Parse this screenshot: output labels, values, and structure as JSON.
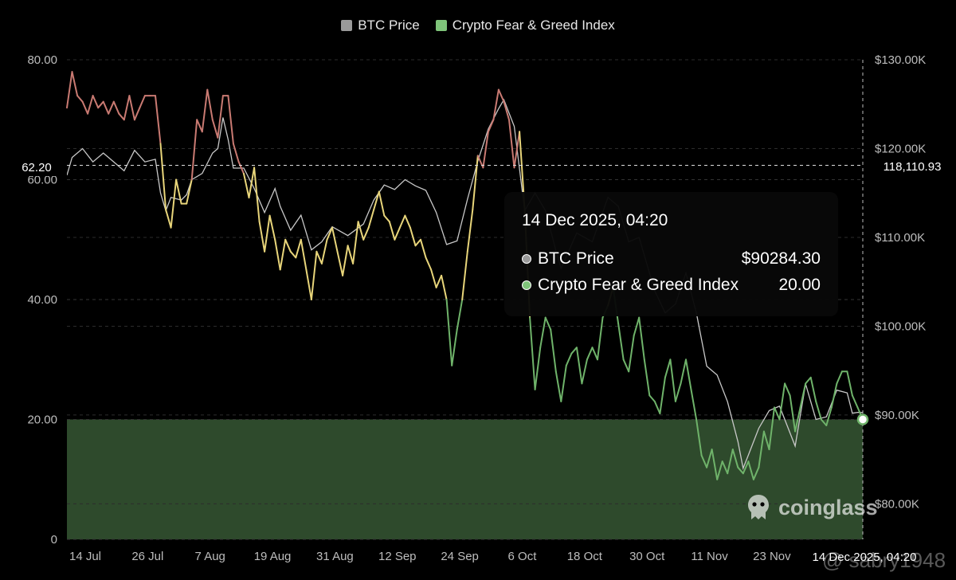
{
  "legend": {
    "btc_label": "BTC Price",
    "fg_label": "Crypto Fear & Greed Index"
  },
  "colors": {
    "btc_line": "#c8c8c8",
    "fg_extreme_greed": "#c97a72",
    "fg_greed": "#e8d57a",
    "fg_fear": "#6fb36a",
    "fg_extreme_fear_zone": "#2e4a2c",
    "btc_legend": "#9a9a9a",
    "fg_legend": "#7fc47a"
  },
  "crosshair": {
    "left_value": "62.20",
    "right_value": "118,110.93",
    "x_value": "14 Dec 2025, 04:20"
  },
  "tooltip": {
    "title": "14 Dec 2025, 04:20",
    "rows": [
      {
        "name": "BTC Price",
        "value": "$90284.30"
      },
      {
        "name": "Crypto Fear & Greed Index",
        "value": "20.00"
      }
    ]
  },
  "watermark": {
    "brand": "coinglass",
    "user": "@ sabry1948"
  },
  "chart_data": {
    "type": "line",
    "x_tick_labels": [
      "14 Jul",
      "26 Jul",
      "7 Aug",
      "19 Aug",
      "31 Aug",
      "12 Sep",
      "24 Sep",
      "6 Oct",
      "18 Oct",
      "30 Oct",
      "11 Nov",
      "23 Nov"
    ],
    "y_left": {
      "ticks": [
        "0",
        "20.00",
        "40.00",
        "60.00",
        "80.00"
      ],
      "range": [
        0,
        80
      ]
    },
    "y_right": {
      "ticks": [
        "$80.00K",
        "$90.00K",
        "$100.00K",
        "$110.00K",
        "$120.00K",
        "$130.00K"
      ],
      "range": [
        76000,
        130000
      ]
    },
    "extreme_fear_threshold": 20,
    "grid": true,
    "legend_position": "top-center",
    "x_range": [
      "2025-07-14",
      "2025-12-14"
    ],
    "series": [
      {
        "name": "BTC Price",
        "axis": "right",
        "points": [
          [
            "2025-07-14",
            117000
          ],
          [
            "2025-07-15",
            119000
          ],
          [
            "2025-07-17",
            120000
          ],
          [
            "2025-07-19",
            118500
          ],
          [
            "2025-07-21",
            119500
          ],
          [
            "2025-07-23",
            118500
          ],
          [
            "2025-07-25",
            117500
          ],
          [
            "2025-07-27",
            119800
          ],
          [
            "2025-07-29",
            118500
          ],
          [
            "2025-07-31",
            118800
          ],
          [
            "2025-08-01",
            115000
          ],
          [
            "2025-08-02",
            113000
          ],
          [
            "2025-08-03",
            114500
          ],
          [
            "2025-08-05",
            114200
          ],
          [
            "2025-08-06",
            114800
          ],
          [
            "2025-08-07",
            116500
          ],
          [
            "2025-08-09",
            117200
          ],
          [
            "2025-08-11",
            119500
          ],
          [
            "2025-08-12",
            120000
          ],
          [
            "2025-08-13",
            123500
          ],
          [
            "2025-08-14",
            121000
          ],
          [
            "2025-08-15",
            117800
          ],
          [
            "2025-08-17",
            117800
          ],
          [
            "2025-08-19",
            115500
          ],
          [
            "2025-08-21",
            112800
          ],
          [
            "2025-08-23",
            115500
          ],
          [
            "2025-08-24",
            113500
          ],
          [
            "2025-08-26",
            110800
          ],
          [
            "2025-08-28",
            112500
          ],
          [
            "2025-08-30",
            108600
          ],
          [
            "2025-09-01",
            109500
          ],
          [
            "2025-09-03",
            111200
          ],
          [
            "2025-09-06",
            110200
          ],
          [
            "2025-09-09",
            111500
          ],
          [
            "2025-09-11",
            114200
          ],
          [
            "2025-09-13",
            115900
          ],
          [
            "2025-09-15",
            115400
          ],
          [
            "2025-09-17",
            116500
          ],
          [
            "2025-09-19",
            115800
          ],
          [
            "2025-09-21",
            115300
          ],
          [
            "2025-09-23",
            112800
          ],
          [
            "2025-09-25",
            109200
          ],
          [
            "2025-09-27",
            109600
          ],
          [
            "2025-09-29",
            114300
          ],
          [
            "2025-10-01",
            118600
          ],
          [
            "2025-10-03",
            122200
          ],
          [
            "2025-10-05",
            124500
          ],
          [
            "2025-10-06",
            125500
          ],
          [
            "2025-10-08",
            122500
          ],
          [
            "2025-10-10",
            113000
          ],
          [
            "2025-10-12",
            115000
          ],
          [
            "2025-10-14",
            113000
          ],
          [
            "2025-10-16",
            108500
          ],
          [
            "2025-10-17",
            106500
          ],
          [
            "2025-10-20",
            110500
          ],
          [
            "2025-10-23",
            109500
          ],
          [
            "2025-10-26",
            114500
          ],
          [
            "2025-10-28",
            113500
          ],
          [
            "2025-10-30",
            109500
          ],
          [
            "2025-11-01",
            110000
          ],
          [
            "2025-11-04",
            104000
          ],
          [
            "2025-11-06",
            101500
          ],
          [
            "2025-11-08",
            102500
          ],
          [
            "2025-11-10",
            106000
          ],
          [
            "2025-11-12",
            101500
          ],
          [
            "2025-11-14",
            95500
          ],
          [
            "2025-11-16",
            94500
          ],
          [
            "2025-11-18",
            91500
          ],
          [
            "2025-11-20",
            87000
          ],
          [
            "2025-11-21",
            84000
          ],
          [
            "2025-11-22",
            85500
          ],
          [
            "2025-11-24",
            88500
          ],
          [
            "2025-11-26",
            90500
          ],
          [
            "2025-11-28",
            91000
          ],
          [
            "2025-12-01",
            86500
          ],
          [
            "2025-12-03",
            93500
          ],
          [
            "2025-12-05",
            89500
          ],
          [
            "2025-12-07",
            89800
          ],
          [
            "2025-12-09",
            92800
          ],
          [
            "2025-12-11",
            92500
          ],
          [
            "2025-12-12",
            90200
          ],
          [
            "2025-12-13",
            90300
          ],
          [
            "2025-12-14",
            90284.3
          ]
        ]
      },
      {
        "name": "Crypto Fear & Greed Index",
        "axis": "left",
        "points": [
          [
            "2025-07-14",
            72
          ],
          [
            "2025-07-15",
            78
          ],
          [
            "2025-07-16",
            74
          ],
          [
            "2025-07-17",
            73
          ],
          [
            "2025-07-18",
            71
          ],
          [
            "2025-07-19",
            74
          ],
          [
            "2025-07-20",
            72
          ],
          [
            "2025-07-21",
            73
          ],
          [
            "2025-07-22",
            71
          ],
          [
            "2025-07-23",
            73
          ],
          [
            "2025-07-24",
            71
          ],
          [
            "2025-07-25",
            70
          ],
          [
            "2025-07-26",
            74
          ],
          [
            "2025-07-27",
            70
          ],
          [
            "2025-07-28",
            72
          ],
          [
            "2025-07-29",
            74
          ],
          [
            "2025-07-30",
            74
          ],
          [
            "2025-07-31",
            74
          ],
          [
            "2025-08-01",
            66
          ],
          [
            "2025-08-02",
            55
          ],
          [
            "2025-08-03",
            52
          ],
          [
            "2025-08-04",
            60
          ],
          [
            "2025-08-05",
            56
          ],
          [
            "2025-08-06",
            56
          ],
          [
            "2025-08-07",
            60
          ],
          [
            "2025-08-08",
            70
          ],
          [
            "2025-08-09",
            68
          ],
          [
            "2025-08-10",
            75
          ],
          [
            "2025-08-11",
            70
          ],
          [
            "2025-08-12",
            67
          ],
          [
            "2025-08-13",
            74
          ],
          [
            "2025-08-14",
            74
          ],
          [
            "2025-08-15",
            66
          ],
          [
            "2025-08-16",
            63
          ],
          [
            "2025-08-17",
            61
          ],
          [
            "2025-08-18",
            57
          ],
          [
            "2025-08-19",
            62
          ],
          [
            "2025-08-20",
            53
          ],
          [
            "2025-08-21",
            48
          ],
          [
            "2025-08-22",
            54
          ],
          [
            "2025-08-23",
            50
          ],
          [
            "2025-08-24",
            45
          ],
          [
            "2025-08-25",
            50
          ],
          [
            "2025-08-26",
            48
          ],
          [
            "2025-08-27",
            47
          ],
          [
            "2025-08-28",
            50
          ],
          [
            "2025-08-29",
            45
          ],
          [
            "2025-08-30",
            40
          ],
          [
            "2025-08-31",
            48
          ],
          [
            "2025-09-01",
            46
          ],
          [
            "2025-09-02",
            50
          ],
          [
            "2025-09-03",
            52
          ],
          [
            "2025-09-04",
            48
          ],
          [
            "2025-09-05",
            44
          ],
          [
            "2025-09-06",
            49
          ],
          [
            "2025-09-07",
            46
          ],
          [
            "2025-09-08",
            53
          ],
          [
            "2025-09-09",
            50
          ],
          [
            "2025-09-10",
            52
          ],
          [
            "2025-09-11",
            55
          ],
          [
            "2025-09-12",
            58
          ],
          [
            "2025-09-13",
            54
          ],
          [
            "2025-09-14",
            53
          ],
          [
            "2025-09-15",
            50
          ],
          [
            "2025-09-16",
            52
          ],
          [
            "2025-09-17",
            54
          ],
          [
            "2025-09-18",
            52
          ],
          [
            "2025-09-19",
            49
          ],
          [
            "2025-09-20",
            50
          ],
          [
            "2025-09-21",
            47
          ],
          [
            "2025-09-22",
            45
          ],
          [
            "2025-09-23",
            42
          ],
          [
            "2025-09-24",
            44
          ],
          [
            "2025-09-25",
            40
          ],
          [
            "2025-09-26",
            29
          ],
          [
            "2025-09-27",
            35
          ],
          [
            "2025-09-28",
            40
          ],
          [
            "2025-09-29",
            48
          ],
          [
            "2025-09-30",
            55
          ],
          [
            "2025-10-01",
            64
          ],
          [
            "2025-10-02",
            62
          ],
          [
            "2025-10-03",
            68
          ],
          [
            "2025-10-04",
            70
          ],
          [
            "2025-10-05",
            75
          ],
          [
            "2025-10-06",
            73
          ],
          [
            "2025-10-07",
            70
          ],
          [
            "2025-10-08",
            62
          ],
          [
            "2025-10-09",
            68
          ],
          [
            "2025-10-10",
            55
          ],
          [
            "2025-10-11",
            37
          ],
          [
            "2025-10-12",
            25
          ],
          [
            "2025-10-13",
            32
          ],
          [
            "2025-10-14",
            37
          ],
          [
            "2025-10-15",
            35
          ],
          [
            "2025-10-16",
            28
          ],
          [
            "2025-10-17",
            23
          ],
          [
            "2025-10-18",
            29
          ],
          [
            "2025-10-19",
            31
          ],
          [
            "2025-10-20",
            32
          ],
          [
            "2025-10-21",
            26
          ],
          [
            "2025-10-22",
            30
          ],
          [
            "2025-10-23",
            32
          ],
          [
            "2025-10-24",
            30
          ],
          [
            "2025-10-25",
            37
          ],
          [
            "2025-10-26",
            39
          ],
          [
            "2025-10-27",
            42
          ],
          [
            "2025-10-28",
            36
          ],
          [
            "2025-10-29",
            30
          ],
          [
            "2025-10-30",
            28
          ],
          [
            "2025-10-31",
            34
          ],
          [
            "2025-11-01",
            37
          ],
          [
            "2025-11-02",
            30
          ],
          [
            "2025-11-03",
            24
          ],
          [
            "2025-11-04",
            23
          ],
          [
            "2025-11-05",
            21
          ],
          [
            "2025-11-06",
            27
          ],
          [
            "2025-11-07",
            30
          ],
          [
            "2025-11-08",
            23
          ],
          [
            "2025-11-09",
            26
          ],
          [
            "2025-11-10",
            30
          ],
          [
            "2025-11-11",
            25
          ],
          [
            "2025-11-12",
            20
          ],
          [
            "2025-11-13",
            14
          ],
          [
            "2025-11-14",
            12
          ],
          [
            "2025-11-15",
            15
          ],
          [
            "2025-11-16",
            10
          ],
          [
            "2025-11-17",
            13
          ],
          [
            "2025-11-18",
            11
          ],
          [
            "2025-11-19",
            15
          ],
          [
            "2025-11-20",
            12
          ],
          [
            "2025-11-21",
            11
          ],
          [
            "2025-11-22",
            13
          ],
          [
            "2025-11-23",
            10
          ],
          [
            "2025-11-24",
            12
          ],
          [
            "2025-11-25",
            18
          ],
          [
            "2025-11-26",
            15
          ],
          [
            "2025-11-27",
            22
          ],
          [
            "2025-11-28",
            20
          ],
          [
            "2025-11-29",
            26
          ],
          [
            "2025-11-30",
            24
          ],
          [
            "2025-12-01",
            18
          ],
          [
            "2025-12-02",
            22
          ],
          [
            "2025-12-03",
            26
          ],
          [
            "2025-12-04",
            27
          ],
          [
            "2025-12-05",
            23
          ],
          [
            "2025-12-06",
            20
          ],
          [
            "2025-12-07",
            19
          ],
          [
            "2025-12-08",
            22
          ],
          [
            "2025-12-09",
            26
          ],
          [
            "2025-12-10",
            28
          ],
          [
            "2025-12-11",
            28
          ],
          [
            "2025-12-12",
            24
          ],
          [
            "2025-12-13",
            22
          ],
          [
            "2025-12-14",
            20
          ]
        ]
      }
    ]
  }
}
